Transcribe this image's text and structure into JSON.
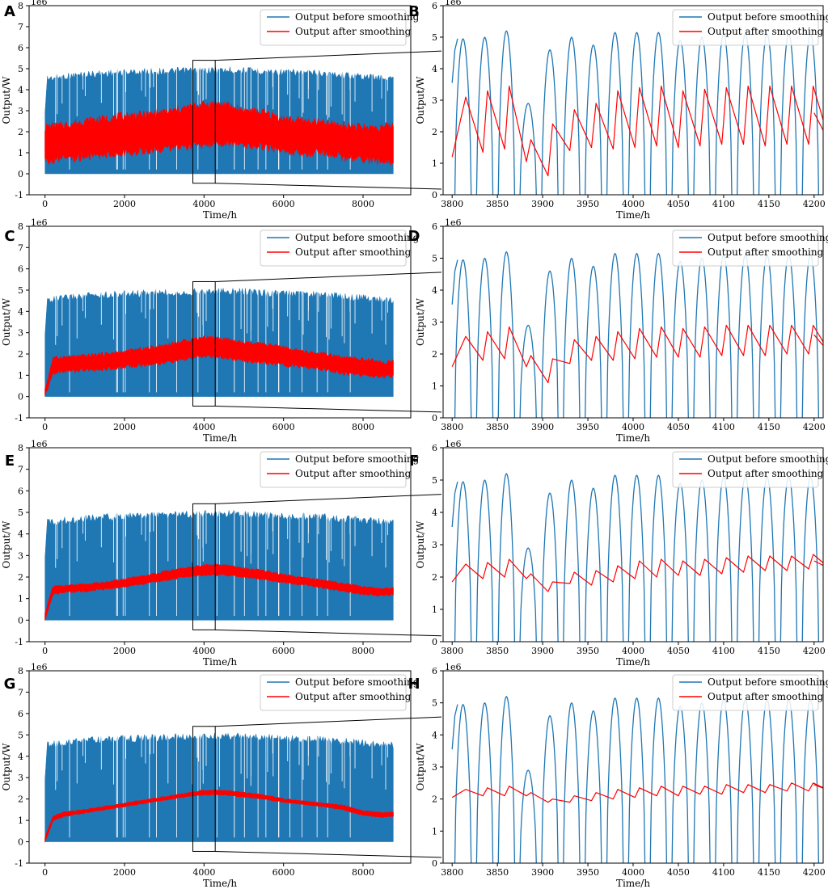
{
  "figure": {
    "title": "",
    "colors": {
      "before": "#1f77b4",
      "after": "#ff0000",
      "axis": "#000000"
    }
  },
  "chart_data": [
    {
      "panel": "A",
      "type": "area",
      "role": "full-year",
      "offset_label": "1e6",
      "xlabel": "Time/h",
      "ylabel": "Output/W",
      "xlim": [
        -400,
        9200
      ],
      "ylim": [
        -1,
        8
      ],
      "xticks": [
        0,
        2000,
        4000,
        6000,
        8000
      ],
      "yticks": [
        -1,
        0,
        1,
        2,
        3,
        4,
        5,
        6,
        7,
        8
      ],
      "zoom_range": [
        3800,
        4200
      ],
      "legend": {
        "location": "top-right",
        "entries": [
          "Output before smoothing",
          "Output after smoothing"
        ]
      },
      "series": [
        {
          "name": "Output before smoothing",
          "kind": "band",
          "x": [
            0,
            1000,
            2000,
            3000,
            4000,
            5000,
            6000,
            7000,
            8000,
            8760
          ],
          "upper": [
            4.7,
            4.9,
            5.0,
            5.05,
            5.1,
            5.1,
            5.0,
            4.95,
            4.8,
            4.7
          ],
          "lower": [
            0,
            0,
            0,
            0,
            0,
            0,
            0,
            0,
            0,
            0
          ]
        },
        {
          "name": "Output after smoothing",
          "kind": "band",
          "x": [
            0,
            500,
            1000,
            1500,
            2000,
            2500,
            3000,
            3500,
            4000,
            4500,
            5000,
            5500,
            6000,
            6500,
            7000,
            7500,
            8000,
            8500,
            8760
          ],
          "upper": [
            2.2,
            2.3,
            2.5,
            2.6,
            2.75,
            2.8,
            2.9,
            3.1,
            3.3,
            3.3,
            3.0,
            2.9,
            2.6,
            2.5,
            2.4,
            2.3,
            2.2,
            2.2,
            2.3
          ],
          "lower": [
            0.6,
            0.7,
            0.8,
            0.9,
            1.0,
            1.1,
            1.2,
            1.3,
            1.4,
            1.5,
            1.4,
            1.3,
            1.1,
            1.0,
            1.0,
            0.8,
            0.7,
            0.6,
            0.6
          ]
        }
      ]
    },
    {
      "panel": "B",
      "type": "line",
      "role": "zoom",
      "offset_label": "1e6",
      "xlabel": "Time/h",
      "ylabel": "Output/W",
      "xlim": [
        3790,
        4210
      ],
      "ylim": [
        0,
        6
      ],
      "xticks": [
        3800,
        3850,
        3900,
        3950,
        4000,
        4050,
        4100,
        4150,
        4200
      ],
      "yticks": [
        0,
        1,
        2,
        3,
        4,
        5,
        6
      ],
      "legend": {
        "location": "top-right",
        "entries": [
          "Output before smoothing",
          "Output after smoothing"
        ]
      },
      "series": [
        {
          "name": "Output before smoothing",
          "day_peaks": [
            4.95,
            5.0,
            5.2,
            2.9,
            4.6,
            5.0,
            4.75,
            5.15,
            5.15,
            5.15,
            4.9,
            5.0,
            5.1,
            5.1,
            5.1,
            5.1,
            5.1
          ]
        },
        {
          "name": "Output after smoothing",
          "peaks": [
            3.1,
            3.3,
            3.45,
            1.75,
            2.25,
            2.7,
            2.9,
            3.3,
            3.4,
            3.45,
            3.3,
            3.35,
            3.4,
            3.45,
            3.45,
            3.45,
            3.45
          ],
          "troughs": [
            1.2,
            1.35,
            1.45,
            1.05,
            0.6,
            1.4,
            1.5,
            1.45,
            1.5,
            1.55,
            1.5,
            1.55,
            1.6,
            1.6,
            1.55,
            1.6,
            1.6
          ],
          "end_value": 2.6
        }
      ]
    },
    {
      "panel": "C",
      "type": "area",
      "role": "full-year",
      "offset_label": "1e6",
      "xlabel": "Time/h",
      "ylabel": "Output/W",
      "xlim": [
        -400,
        9200
      ],
      "ylim": [
        -1,
        8
      ],
      "xticks": [
        0,
        2000,
        4000,
        6000,
        8000
      ],
      "yticks": [
        -1,
        0,
        1,
        2,
        3,
        4,
        5,
        6,
        7,
        8
      ],
      "zoom_range": [
        3800,
        4200
      ],
      "legend": {
        "location": "top-right",
        "entries": [
          "Output before smoothing",
          "Output after smoothing"
        ]
      },
      "series": [
        {
          "name": "Output before smoothing",
          "kind": "band",
          "x": [
            0,
            1000,
            2000,
            3000,
            4000,
            5000,
            6000,
            7000,
            8000,
            8760
          ],
          "upper": [
            4.7,
            4.9,
            5.0,
            5.05,
            5.1,
            5.1,
            5.0,
            4.95,
            4.8,
            4.7
          ],
          "lower": [
            0,
            0,
            0,
            0,
            0,
            0,
            0,
            0,
            0,
            0
          ]
        },
        {
          "name": "Output after smoothing",
          "kind": "band",
          "x": [
            0,
            200,
            500,
            1000,
            1500,
            2000,
            2500,
            3000,
            3500,
            4000,
            4500,
            5000,
            5500,
            6000,
            6500,
            7000,
            7500,
            8000,
            8500,
            8760
          ],
          "upper": [
            0.3,
            1.8,
            1.85,
            1.9,
            2.0,
            2.1,
            2.25,
            2.4,
            2.6,
            2.8,
            2.7,
            2.5,
            2.45,
            2.3,
            2.1,
            2.0,
            1.8,
            1.75,
            1.6,
            1.7
          ],
          "lower": [
            0.0,
            1.1,
            1.2,
            1.25,
            1.3,
            1.4,
            1.5,
            1.6,
            1.75,
            1.9,
            1.85,
            1.7,
            1.6,
            1.5,
            1.4,
            1.3,
            1.1,
            1.0,
            0.95,
            1.0
          ]
        }
      ]
    },
    {
      "panel": "D",
      "type": "line",
      "role": "zoom",
      "offset_label": "1e6",
      "xlabel": "Time/h",
      "ylabel": "Output/W",
      "xlim": [
        3790,
        4210
      ],
      "ylim": [
        0,
        6
      ],
      "xticks": [
        3800,
        3850,
        3900,
        3950,
        4000,
        4050,
        4100,
        4150,
        4200
      ],
      "yticks": [
        0,
        1,
        2,
        3,
        4,
        5,
        6
      ],
      "legend": {
        "location": "top-right",
        "entries": [
          "Output before smoothing",
          "Output after smoothing"
        ]
      },
      "series": [
        {
          "name": "Output before smoothing",
          "day_peaks": [
            4.95,
            5.0,
            5.2,
            2.9,
            4.6,
            5.0,
            4.75,
            5.15,
            5.15,
            5.15,
            4.9,
            5.0,
            5.1,
            5.1,
            5.1,
            5.1,
            5.1
          ]
        },
        {
          "name": "Output after smoothing",
          "peaks": [
            2.55,
            2.7,
            2.85,
            1.95,
            1.85,
            2.45,
            2.55,
            2.7,
            2.8,
            2.85,
            2.8,
            2.85,
            2.9,
            2.9,
            2.9,
            2.9,
            2.9
          ],
          "troughs": [
            1.6,
            1.8,
            1.85,
            1.6,
            1.1,
            1.7,
            1.8,
            1.8,
            1.85,
            1.9,
            1.9,
            1.9,
            1.95,
            1.95,
            1.95,
            2.0,
            2.0
          ],
          "end_value": 2.6
        }
      ]
    },
    {
      "panel": "E",
      "type": "area",
      "role": "full-year",
      "offset_label": "1e6",
      "xlabel": "Time/h",
      "ylabel": "Output/W",
      "xlim": [
        -400,
        9200
      ],
      "ylim": [
        -1,
        8
      ],
      "xticks": [
        0,
        2000,
        4000,
        6000,
        8000
      ],
      "yticks": [
        -1,
        0,
        1,
        2,
        3,
        4,
        5,
        6,
        7,
        8
      ],
      "zoom_range": [
        3800,
        4200
      ],
      "legend": {
        "location": "top-right",
        "entries": [
          "Output before smoothing",
          "Output after smoothing"
        ]
      },
      "series": [
        {
          "name": "Output before smoothing",
          "kind": "band",
          "x": [
            0,
            1000,
            2000,
            3000,
            4000,
            5000,
            6000,
            7000,
            8000,
            8760
          ],
          "upper": [
            4.7,
            4.9,
            5.0,
            5.05,
            5.1,
            5.1,
            5.0,
            4.95,
            4.8,
            4.7
          ],
          "lower": [
            0,
            0,
            0,
            0,
            0,
            0,
            0,
            0,
            0,
            0
          ]
        },
        {
          "name": "Output after smoothing",
          "kind": "band",
          "x": [
            0,
            200,
            500,
            1000,
            1500,
            2000,
            2500,
            3000,
            3500,
            4000,
            4500,
            5000,
            5500,
            6000,
            6500,
            7000,
            7500,
            8000,
            8500,
            8760
          ],
          "upper": [
            0.3,
            1.55,
            1.6,
            1.65,
            1.75,
            1.9,
            2.05,
            2.25,
            2.4,
            2.55,
            2.55,
            2.4,
            2.3,
            2.1,
            1.95,
            1.85,
            1.7,
            1.55,
            1.45,
            1.5
          ],
          "lower": [
            0.0,
            1.2,
            1.3,
            1.35,
            1.45,
            1.55,
            1.7,
            1.85,
            2.0,
            2.1,
            2.1,
            2.0,
            1.9,
            1.75,
            1.65,
            1.5,
            1.35,
            1.2,
            1.15,
            1.2
          ]
        }
      ]
    },
    {
      "panel": "F",
      "type": "line",
      "role": "zoom",
      "offset_label": "1e6",
      "xlabel": "Time/h",
      "ylabel": "Output/W",
      "xlim": [
        3790,
        4210
      ],
      "ylim": [
        0,
        6
      ],
      "xticks": [
        3800,
        3850,
        3900,
        3950,
        4000,
        4050,
        4100,
        4150,
        4200
      ],
      "yticks": [
        0,
        1,
        2,
        3,
        4,
        5,
        6
      ],
      "legend": {
        "location": "top-right",
        "entries": [
          "Output before smoothing",
          "Output after smoothing"
        ]
      },
      "series": [
        {
          "name": "Output before smoothing",
          "day_peaks": [
            4.95,
            5.0,
            5.2,
            2.9,
            4.6,
            5.0,
            4.75,
            5.15,
            5.15,
            5.15,
            4.9,
            5.0,
            5.1,
            5.1,
            5.1,
            5.1,
            5.1
          ]
        },
        {
          "name": "Output after smoothing",
          "peaks": [
            2.4,
            2.45,
            2.55,
            2.1,
            1.85,
            2.15,
            2.2,
            2.35,
            2.5,
            2.55,
            2.5,
            2.55,
            2.6,
            2.65,
            2.65,
            2.65,
            2.7
          ],
          "troughs": [
            1.85,
            1.95,
            2.0,
            1.95,
            1.55,
            1.8,
            1.75,
            1.85,
            1.95,
            2.0,
            2.05,
            2.05,
            2.1,
            2.15,
            2.2,
            2.2,
            2.25
          ],
          "end_value": 2.5
        }
      ]
    },
    {
      "panel": "G",
      "type": "area",
      "role": "full-year",
      "offset_label": "1e6",
      "xlabel": "Time/h",
      "ylabel": "Output/W",
      "xlim": [
        -400,
        9200
      ],
      "ylim": [
        -1,
        8
      ],
      "xticks": [
        0,
        2000,
        4000,
        6000,
        8000
      ],
      "yticks": [
        -1,
        0,
        1,
        2,
        3,
        4,
        5,
        6,
        7,
        8
      ],
      "zoom_range": [
        3800,
        4200
      ],
      "legend": {
        "location": "top-right",
        "entries": [
          "Output before smoothing",
          "Output after smoothing"
        ]
      },
      "series": [
        {
          "name": "Output before smoothing",
          "kind": "band",
          "x": [
            0,
            1000,
            2000,
            3000,
            4000,
            5000,
            6000,
            7000,
            8000,
            8760
          ],
          "upper": [
            4.7,
            4.9,
            5.0,
            5.05,
            5.1,
            5.1,
            5.0,
            4.95,
            4.8,
            4.7
          ],
          "lower": [
            0,
            0,
            0,
            0,
            0,
            0,
            0,
            0,
            0,
            0
          ]
        },
        {
          "name": "Output after smoothing",
          "kind": "band",
          "x": [
            0,
            200,
            500,
            1000,
            1500,
            2000,
            2500,
            3000,
            3500,
            4000,
            4500,
            5000,
            5500,
            6000,
            6500,
            7000,
            7500,
            8000,
            8500,
            8760
          ],
          "upper": [
            0.2,
            1.2,
            1.4,
            1.5,
            1.65,
            1.8,
            1.95,
            2.1,
            2.25,
            2.4,
            2.4,
            2.3,
            2.2,
            2.0,
            1.9,
            1.8,
            1.7,
            1.45,
            1.35,
            1.4
          ],
          "lower": [
            0.0,
            1.0,
            1.2,
            1.35,
            1.5,
            1.65,
            1.8,
            1.95,
            2.1,
            2.2,
            2.2,
            2.1,
            2.0,
            1.85,
            1.75,
            1.65,
            1.5,
            1.25,
            1.15,
            1.2
          ]
        }
      ]
    },
    {
      "panel": "H",
      "type": "line",
      "role": "zoom",
      "offset_label": "1e6",
      "xlabel": "Time/h",
      "ylabel": "Output/W",
      "xlim": [
        3790,
        4210
      ],
      "ylim": [
        0,
        6
      ],
      "xticks": [
        3800,
        3850,
        3900,
        3950,
        4000,
        4050,
        4100,
        4150,
        4200
      ],
      "yticks": [
        0,
        1,
        2,
        3,
        4,
        5,
        6
      ],
      "legend": {
        "location": "top-right",
        "entries": [
          "Output before smoothing",
          "Output after smoothing"
        ]
      },
      "series": [
        {
          "name": "Output before smoothing",
          "day_peaks": [
            4.95,
            5.0,
            5.2,
            2.9,
            4.6,
            5.0,
            4.75,
            5.15,
            5.15,
            5.15,
            4.9,
            5.0,
            5.1,
            5.1,
            5.1,
            5.1,
            5.1
          ]
        },
        {
          "name": "Output after smoothing",
          "peaks": [
            2.3,
            2.35,
            2.4,
            2.2,
            2.0,
            2.1,
            2.2,
            2.3,
            2.35,
            2.4,
            2.4,
            2.4,
            2.45,
            2.45,
            2.45,
            2.5,
            2.5
          ],
          "troughs": [
            2.05,
            2.1,
            2.1,
            2.1,
            1.9,
            1.9,
            1.95,
            2.0,
            2.05,
            2.1,
            2.1,
            2.15,
            2.15,
            2.2,
            2.2,
            2.25,
            2.25
          ],
          "end_value": 2.45
        }
      ]
    }
  ]
}
